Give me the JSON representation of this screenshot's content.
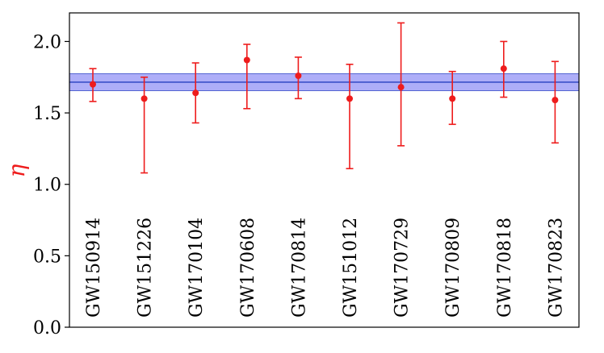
{
  "chart_data": {
    "type": "scatter",
    "title": "",
    "xlabel": "",
    "ylabel": "η",
    "ylabel_color": "#ee1c1c",
    "ylim": [
      0.0,
      2.2
    ],
    "yticks": [
      "0.0",
      "0.5",
      "1.0",
      "1.5",
      "2.0"
    ],
    "ytick_values": [
      0.0,
      0.5,
      1.0,
      1.5,
      2.0
    ],
    "grid": false,
    "categories": [
      "GW150914",
      "GW151226",
      "GW170104",
      "GW170608",
      "GW170814",
      "GW151012",
      "GW170729",
      "GW170809",
      "GW170818",
      "GW170823"
    ],
    "series": [
      {
        "values": [
          1.7,
          1.6,
          1.64,
          1.87,
          1.76,
          1.6,
          1.68,
          1.6,
          1.81,
          1.59
        ],
        "lower": [
          1.58,
          1.08,
          1.43,
          1.53,
          1.6,
          1.11,
          1.27,
          1.42,
          1.61,
          1.29
        ],
        "upper": [
          1.81,
          1.75,
          1.85,
          1.98,
          1.89,
          1.84,
          2.13,
          1.79,
          2.0,
          1.86
        ],
        "color": "#ee1c1c"
      }
    ],
    "band": {
      "center": 1.715,
      "lower": 1.655,
      "upper": 1.775,
      "line_color": "#3b50c8",
      "fill_color": "#8c8cf5"
    }
  }
}
